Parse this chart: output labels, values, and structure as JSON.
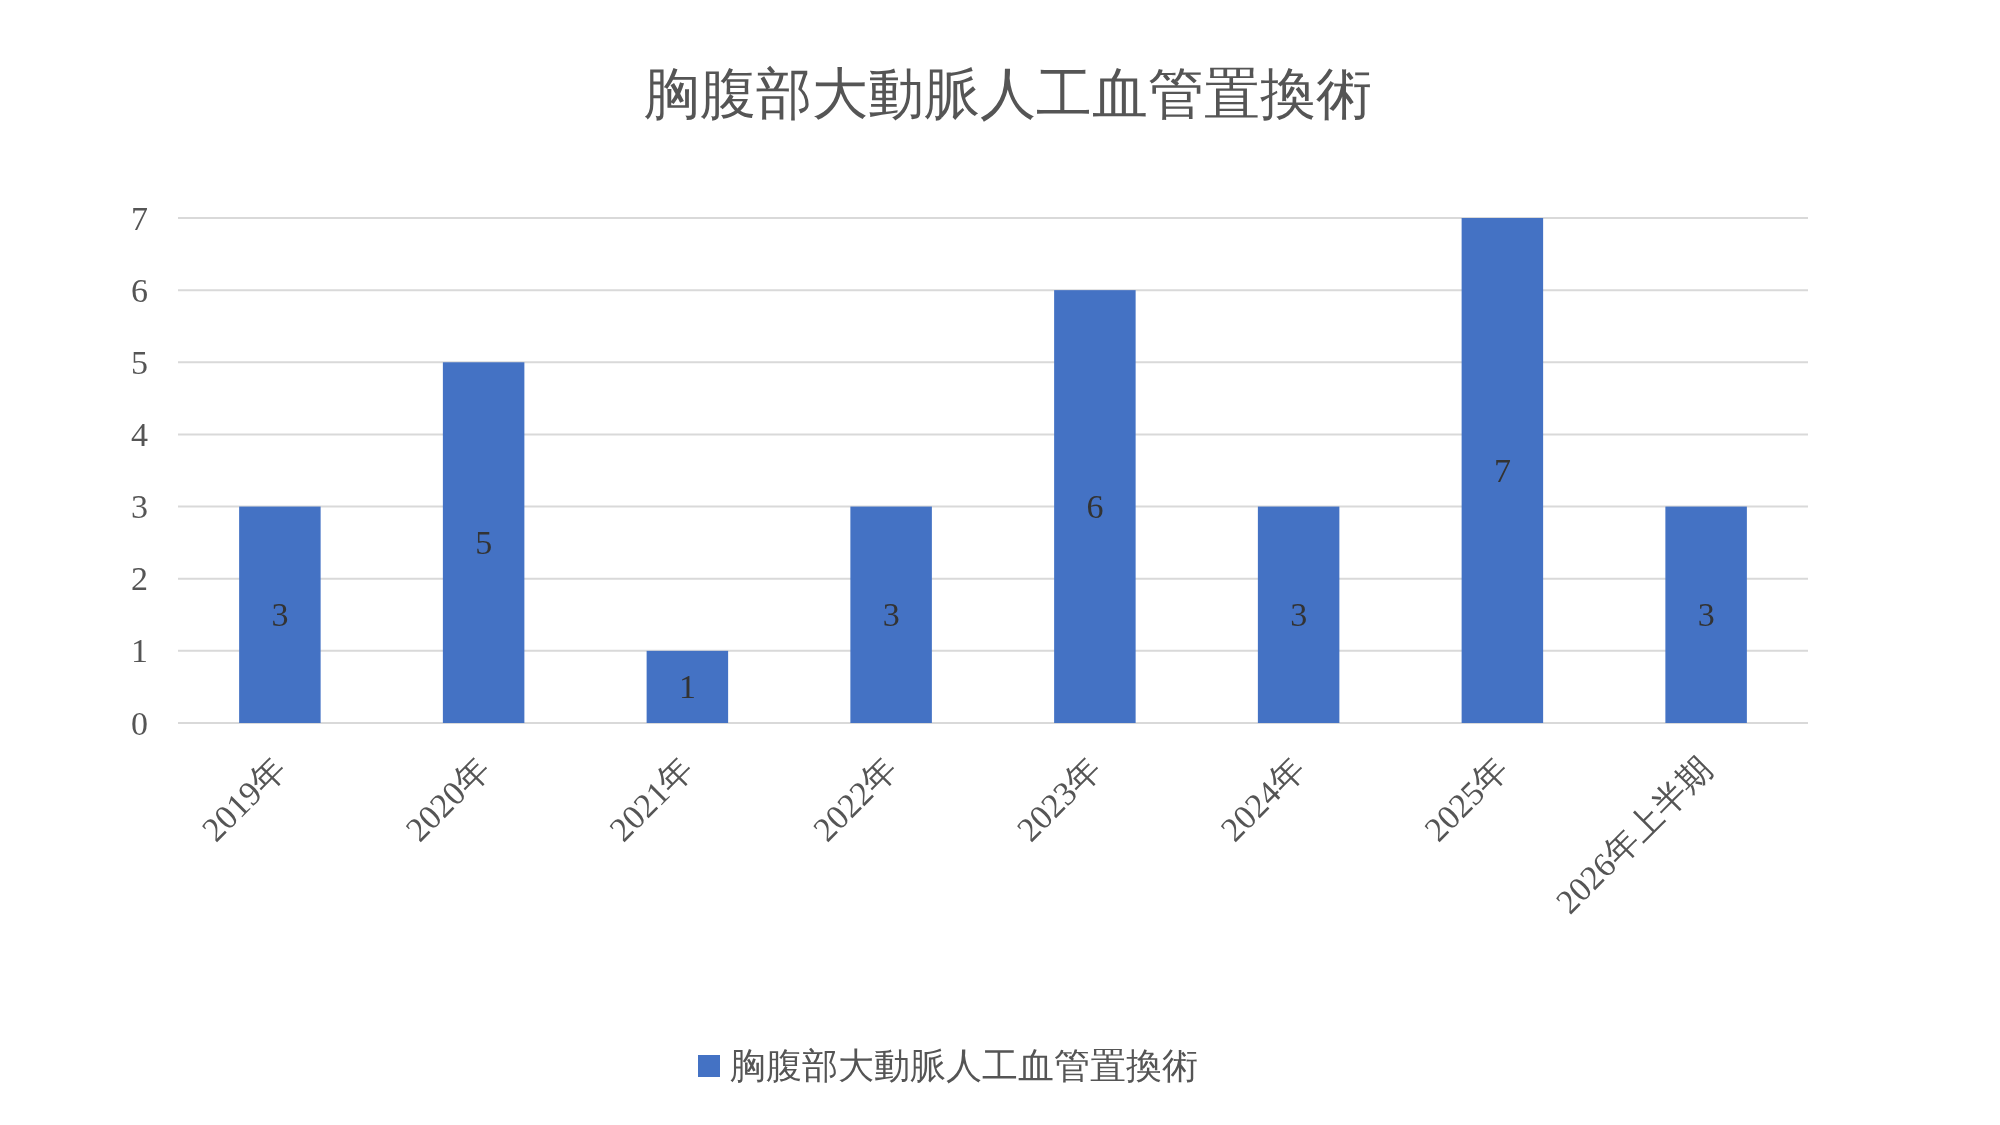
{
  "chart_data": {
    "type": "bar",
    "title": "胸腹部大動脈人工血管置換術",
    "categories": [
      "2019年",
      "2020年",
      "2021年",
      "2022年",
      "2023年",
      "2024年",
      "2025年",
      "2026年上半期"
    ],
    "series": [
      {
        "name": "胸腹部大動脈人工血管置換術",
        "color": "#4472c4",
        "values": [
          3,
          5,
          1,
          3,
          6,
          3,
          7,
          3
        ]
      }
    ],
    "ylim": [
      0,
      7
    ],
    "yticks": [
      0,
      1,
      2,
      3,
      4,
      5,
      6,
      7
    ],
    "grid": "y",
    "data_labels": true,
    "legend": "bottom"
  }
}
